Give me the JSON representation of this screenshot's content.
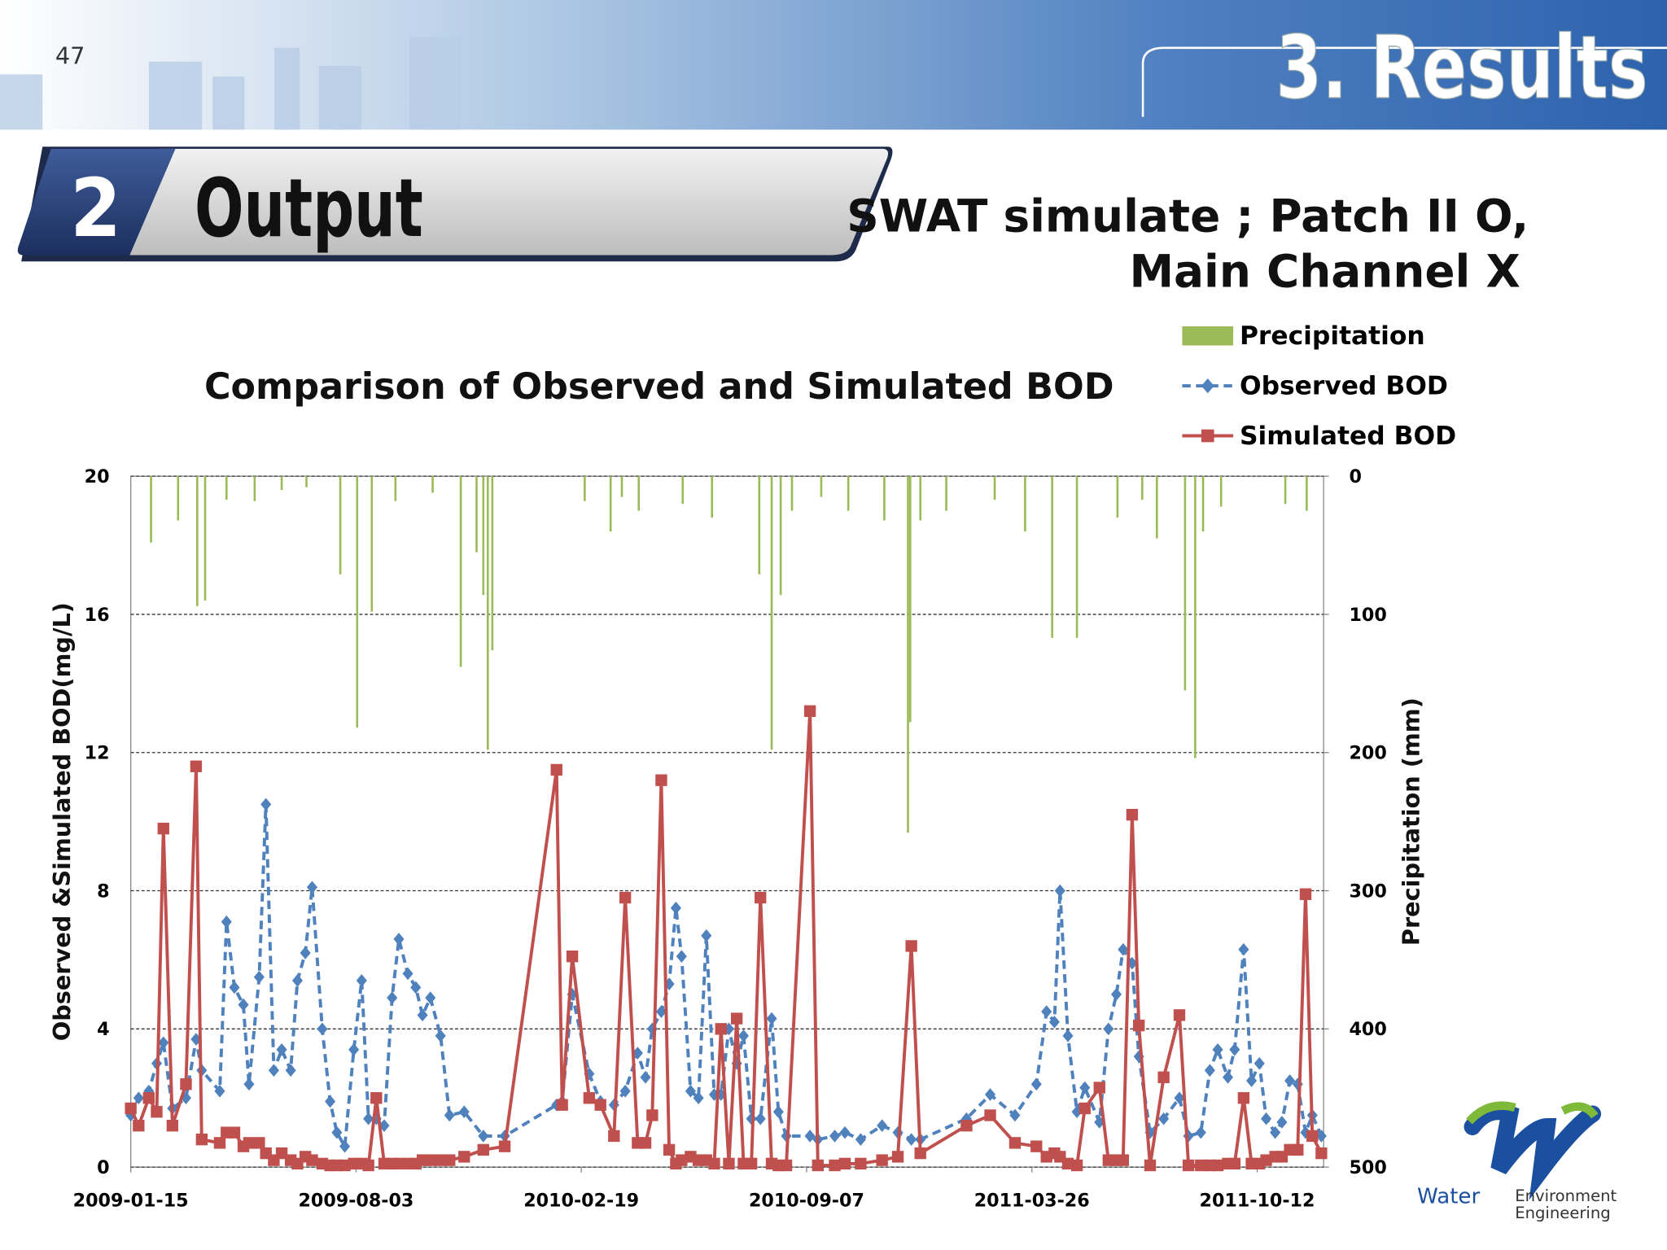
{
  "header": {
    "page_number": "47",
    "section": "3. Results",
    "step_number": "2",
    "step_title": "Output",
    "subtitle_line1": "SWAT simulate ; Patch II O,",
    "subtitle_line2": "Main Channel X"
  },
  "logo": {
    "word1": "Water",
    "word2": "Environment",
    "word3": "Engineering"
  },
  "chart_data": {
    "type": "line",
    "title": "Comparison of Observed and Simulated BOD",
    "ylabel": "Observed &Simulated BOD(mg/L)",
    "y2label": "Precipitation (mm)",
    "xlim": [
      "2009-01-15",
      "2011-12-10"
    ],
    "xticks": [
      "2009-01-15",
      "2009-08-03",
      "2010-02-19",
      "2010-09-07",
      "2011-03-26",
      "2011-10-12"
    ],
    "ylim": [
      0,
      20
    ],
    "yticks": [
      0,
      4,
      8,
      12,
      16,
      20
    ],
    "y2lim": [
      0,
      500
    ],
    "y2ticks": [
      0,
      100,
      200,
      300,
      400,
      500
    ],
    "y2_inverted": true,
    "grid": true,
    "legend": "top-right",
    "x": [
      "2009-01-15",
      "2009-01-22",
      "2009-01-31",
      "2009-02-07",
      "2009-02-13",
      "2009-02-21",
      "2009-03-05",
      "2009-03-14",
      "2009-03-19",
      "2009-04-04",
      "2009-04-10",
      "2009-04-17",
      "2009-04-25",
      "2009-04-30",
      "2009-05-09",
      "2009-05-15",
      "2009-05-22",
      "2009-05-29",
      "2009-06-06",
      "2009-06-12",
      "2009-06-19",
      "2009-06-25",
      "2009-07-04",
      "2009-07-11",
      "2009-07-17",
      "2009-07-24",
      "2009-08-01",
      "2009-08-08",
      "2009-08-14",
      "2009-08-21",
      "2009-08-28",
      "2009-09-04",
      "2009-09-10",
      "2009-09-18",
      "2009-09-25",
      "2009-10-01",
      "2009-10-08",
      "2009-10-17",
      "2009-10-25",
      "2009-11-07",
      "2009-11-24",
      "2009-12-13",
      "2010-01-28",
      "2010-02-02",
      "2010-02-11",
      "2010-02-26",
      "2010-03-08",
      "2010-03-20",
      "2010-03-30",
      "2010-04-10",
      "2010-04-17",
      "2010-04-23",
      "2010-05-01",
      "2010-05-08",
      "2010-05-14",
      "2010-05-19",
      "2010-05-27",
      "2010-06-03",
      "2010-06-10",
      "2010-06-17",
      "2010-06-23",
      "2010-06-30",
      "2010-07-07",
      "2010-07-13",
      "2010-07-20",
      "2010-07-28",
      "2010-08-07",
      "2010-08-13",
      "2010-08-20",
      "2010-09-10",
      "2010-09-17",
      "2010-10-02",
      "2010-10-11",
      "2010-10-25",
      "2010-11-13",
      "2010-11-27",
      "2010-12-09",
      "2010-12-17",
      "2011-01-27",
      "2011-02-17",
      "2011-03-11",
      "2011-03-30",
      "2011-04-08",
      "2011-04-15",
      "2011-04-20",
      "2011-04-27",
      "2011-05-05",
      "2011-05-12",
      "2011-05-25",
      "2011-06-02",
      "2011-06-09",
      "2011-06-15",
      "2011-06-23",
      "2011-06-29",
      "2011-07-09",
      "2011-07-21",
      "2011-08-04",
      "2011-08-12",
      "2011-08-23",
      "2011-08-31",
      "2011-09-07",
      "2011-09-16",
      "2011-09-22",
      "2011-09-30",
      "2011-10-07",
      "2011-10-14",
      "2011-10-20",
      "2011-10-28",
      "2011-11-03",
      "2011-11-10",
      "2011-11-17",
      "2011-11-24",
      "2011-11-30",
      "2011-12-08"
    ],
    "series": [
      {
        "name": "Precipitation",
        "color": "#9bbb59",
        "axis": "y2",
        "kind": "bar",
        "x": [
          "2009-02-02",
          "2009-02-26",
          "2009-03-15",
          "2009-03-22",
          "2009-04-10",
          "2009-05-05",
          "2009-05-29",
          "2009-06-20",
          "2009-07-20",
          "2009-08-04",
          "2009-08-17",
          "2009-09-07",
          "2009-10-10",
          "2009-11-04",
          "2009-11-18",
          "2009-11-24",
          "2009-11-28",
          "2009-12-02",
          "2010-02-22",
          "2010-03-17",
          "2010-03-27",
          "2010-04-11",
          "2010-05-20",
          "2010-06-15",
          "2010-07-27",
          "2010-08-07",
          "2010-08-15",
          "2010-08-25",
          "2010-09-20",
          "2010-10-14",
          "2010-11-15",
          "2010-12-06",
          "2010-12-08",
          "2010-12-17",
          "2011-01-09",
          "2011-02-21",
          "2011-03-20",
          "2011-04-13",
          "2011-05-05",
          "2011-06-10",
          "2011-07-02",
          "2011-07-15",
          "2011-08-09",
          "2011-08-18",
          "2011-08-25",
          "2011-09-10",
          "2011-11-06",
          "2011-11-25"
        ],
        "values": [
          48,
          32,
          94,
          90,
          17,
          18,
          10,
          8,
          71,
          182,
          98,
          18,
          12,
          138,
          55,
          86,
          198,
          126,
          18,
          40,
          15,
          25,
          20,
          30,
          71,
          198,
          86,
          25,
          15,
          25,
          32,
          258,
          178,
          32,
          25,
          17,
          40,
          117,
          117,
          30,
          17,
          45,
          155,
          204,
          40,
          22,
          20,
          25
        ]
      },
      {
        "name": "Observed BOD",
        "color": "#4f81bd",
        "kind": "line",
        "dashed": true,
        "marker": "diamond",
        "values": [
          1.5,
          2.0,
          2.2,
          3.0,
          3.6,
          1.7,
          2.0,
          3.7,
          2.8,
          2.2,
          7.1,
          5.2,
          4.7,
          2.4,
          5.5,
          10.5,
          2.8,
          3.4,
          2.8,
          5.4,
          6.2,
          8.1,
          4.0,
          1.9,
          1.0,
          0.6,
          3.4,
          5.4,
          1.4,
          1.4,
          1.2,
          4.9,
          6.6,
          5.6,
          5.2,
          4.4,
          4.9,
          3.8,
          1.5,
          1.6,
          0.9,
          0.9,
          1.8,
          1.9,
          5.0,
          2.7,
          1.9,
          1.8,
          2.2,
          3.3,
          2.6,
          4.0,
          4.5,
          5.3,
          7.5,
          6.1,
          2.2,
          2.0,
          6.7,
          2.1,
          2.1,
          4.0,
          3.0,
          3.8,
          1.4,
          1.4,
          4.3,
          1.6,
          0.9,
          0.9,
          0.8,
          0.9,
          1.0,
          0.8,
          1.2,
          1.0,
          0.8,
          0.8,
          1.4,
          2.1,
          1.5,
          2.4,
          4.5,
          4.2,
          8.0,
          3.8,
          1.6,
          2.3,
          1.3,
          4.0,
          5.0,
          6.3,
          5.9,
          3.2,
          1.0,
          1.4,
          2.0,
          0.9,
          1.0,
          2.8,
          3.4,
          2.6,
          3.4,
          6.3,
          2.5,
          3.0,
          1.4,
          1.0,
          1.3,
          2.5,
          2.4,
          1.0,
          1.5,
          0.9
        ]
      },
      {
        "name": "Simulated BOD",
        "color": "#c0504d",
        "kind": "line",
        "dashed": false,
        "marker": "square",
        "values": [
          1.7,
          1.2,
          2.0,
          1.6,
          9.8,
          1.2,
          2.4,
          11.6,
          0.8,
          0.7,
          1.0,
          1.0,
          0.6,
          0.7,
          0.7,
          0.4,
          0.2,
          0.4,
          0.2,
          0.1,
          0.3,
          0.2,
          0.1,
          0.05,
          0.05,
          0.05,
          0.1,
          0.1,
          0.05,
          2.0,
          0.1,
          0.1,
          0.1,
          0.1,
          0.1,
          0.2,
          0.2,
          0.2,
          0.2,
          0.3,
          0.5,
          0.6,
          11.5,
          1.8,
          6.1,
          2.0,
          1.8,
          0.9,
          7.8,
          0.7,
          0.7,
          1.5,
          11.2,
          0.5,
          0.1,
          0.2,
          0.3,
          0.2,
          0.2,
          0.1,
          4.0,
          0.1,
          4.3,
          0.1,
          0.1,
          7.8,
          0.1,
          0.05,
          0.05,
          13.2,
          0.05,
          0.05,
          0.1,
          0.1,
          0.2,
          0.3,
          6.4,
          0.4,
          1.2,
          1.5,
          0.7,
          0.6,
          0.3,
          0.4,
          0.3,
          0.1,
          0.05,
          1.7,
          2.3,
          0.2,
          0.2,
          0.2,
          10.2,
          4.1,
          0.05,
          2.6,
          4.4,
          0.05,
          0.05,
          0.05,
          0.05,
          0.1,
          0.1,
          2.0,
          0.1,
          0.1,
          0.2,
          0.3,
          0.3,
          0.5,
          0.5,
          7.9,
          0.9,
          0.4
        ]
      }
    ]
  }
}
